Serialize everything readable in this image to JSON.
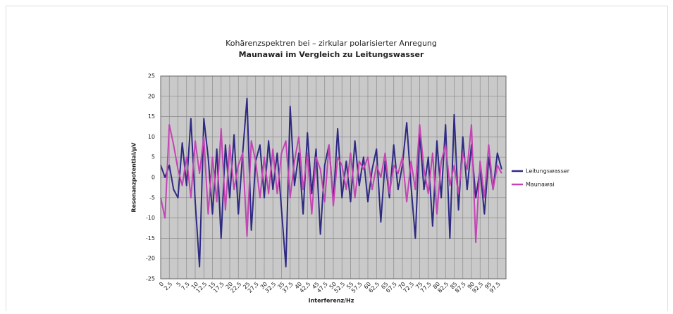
{
  "chart_data": {
    "type": "line",
    "title": "Kohärenzspektren bei – zirkular polarisierter Anregung",
    "subtitle": "Maunawai im Vergleich zu Leitungswasser",
    "x_label": "Interferenz/Hz",
    "y_label": "Resonanzpotential/µV",
    "x": [
      0,
      1.25,
      2.5,
      3.75,
      5,
      6.25,
      7.5,
      8.75,
      10,
      11.25,
      12.5,
      13.75,
      15,
      16.25,
      17.5,
      18.75,
      20,
      21.25,
      22.5,
      23.75,
      25,
      26.25,
      27.5,
      28.75,
      30,
      31.25,
      32.5,
      33.75,
      35,
      36.25,
      37.5,
      38.75,
      40,
      41.25,
      42.5,
      43.75,
      45,
      46.25,
      47.5,
      48.75,
      50,
      51.25,
      52.5,
      53.75,
      55,
      56.25,
      57.5,
      58.75,
      60,
      61.25,
      62.5,
      63.75,
      65,
      66.25,
      67.5,
      68.75,
      70,
      71.25,
      72.5,
      73.75,
      75,
      76.25,
      77.5,
      78.75,
      80,
      81.25,
      82.5,
      83.75,
      85,
      86.25,
      87.5,
      88.75,
      90,
      91.25,
      92.5,
      93.75,
      95,
      96.25,
      97.5,
      98.75
    ],
    "series": [
      {
        "name": "Leitungswasser",
        "color": "#2e2a82",
        "values": [
          3,
          0,
          3,
          -3,
          -5,
          8.5,
          -2,
          14.5,
          -6,
          -22,
          14.5,
          5,
          -9,
          7,
          -15,
          8,
          -5,
          10.5,
          -9,
          6,
          19.5,
          -13,
          4,
          8,
          -5,
          9,
          -3,
          6,
          -8,
          -22,
          17.5,
          -2,
          6,
          -9,
          11,
          -4,
          7,
          -14,
          3,
          8,
          -6,
          12,
          -5,
          4,
          -6,
          9,
          -2,
          5,
          -6,
          2,
          7,
          -11,
          4,
          -5,
          8,
          -3,
          3,
          13.5,
          -2,
          -15,
          11,
          -3,
          5,
          -12,
          9,
          -5,
          13,
          -15,
          15.5,
          -8,
          10,
          -3,
          8,
          -5,
          2,
          -9,
          5,
          -3,
          6,
          2
        ]
      },
      {
        "name": "Maunawai",
        "color": "#c444b4",
        "values": [
          -5,
          -10,
          13,
          8,
          2,
          -2,
          5,
          -5,
          9,
          1,
          10,
          -9,
          5,
          -6,
          12,
          -8,
          8,
          -3,
          3,
          6,
          -14.5,
          9,
          4,
          -5,
          5,
          -4,
          7,
          -4,
          6,
          9,
          -5,
          4,
          10,
          -3,
          6,
          -9,
          5,
          2,
          -6,
          8,
          -7,
          5,
          3,
          -3,
          6,
          -5,
          4,
          2,
          5,
          -3,
          3,
          0,
          6,
          -4,
          3,
          1,
          5,
          -6,
          4,
          -3,
          13,
          2,
          -4,
          6,
          -9,
          4,
          8,
          -2,
          3,
          -4,
          6,
          2,
          13,
          -16,
          4,
          -5,
          8,
          -3,
          3,
          1
        ]
      }
    ],
    "xlim": [
      0,
      100
    ],
    "xticks": [
      0,
      {
        "value": 2.5,
        "label": "2,5"
      },
      5,
      {
        "value": 7.5,
        "label": "7,5"
      },
      10,
      {
        "value": 12.5,
        "label": "12,5"
      },
      15,
      {
        "value": 17.5,
        "label": "17,5"
      },
      20,
      {
        "value": 22.5,
        "label": "22,5"
      },
      25,
      {
        "value": 27.5,
        "label": "27,5"
      },
      30,
      {
        "value": 32.5,
        "label": "32,5"
      },
      35,
      {
        "value": 37.5,
        "label": "37,5"
      },
      40,
      {
        "value": 42.5,
        "label": "42,5"
      },
      45,
      {
        "value": 47.5,
        "label": "47,5"
      },
      50,
      {
        "value": 52.5,
        "label": "52,5"
      },
      55,
      {
        "value": 57.5,
        "label": "57,5"
      },
      60,
      {
        "value": 62.5,
        "label": "62,5"
      },
      65,
      {
        "value": 67.5,
        "label": "67,5"
      },
      70,
      {
        "value": 72.5,
        "label": "72,5"
      },
      75,
      {
        "value": 77.5,
        "label": "77,5"
      },
      80,
      {
        "value": 82.5,
        "label": "82,5"
      },
      85,
      {
        "value": 87.5,
        "label": "87,5"
      },
      90,
      {
        "value": 92.5,
        "label": "92,5"
      },
      95,
      {
        "value": 97.5,
        "label": "97,5"
      }
    ],
    "ylim": [
      -25,
      25
    ],
    "yticks": [
      -25,
      -20,
      -15,
      -10,
      -5,
      0,
      5,
      10,
      15,
      20,
      25
    ],
    "grid": true,
    "legend": "right"
  }
}
